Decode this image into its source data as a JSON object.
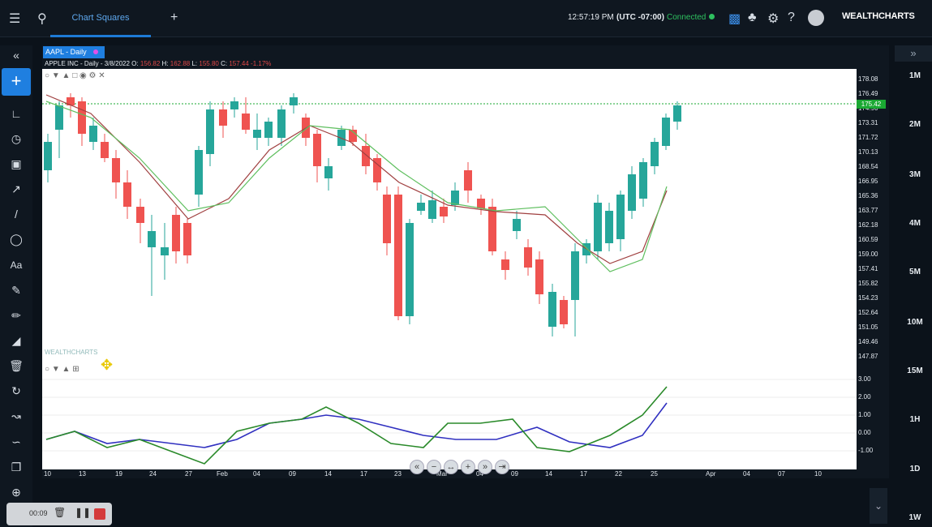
{
  "topbar": {
    "tab_label": "Chart Squares",
    "time": "12:57:19 PM",
    "timezone": "(UTC -07:00)",
    "connection": "Connected",
    "brand": "WEALTHCHARTS"
  },
  "left_toolbar": {
    "collapse": "«",
    "add": "+"
  },
  "right_panel": {
    "collapse": "»",
    "timeframes": [
      "1M",
      "2M",
      "3M",
      "4M",
      "5M",
      "10M",
      "15M",
      "1H",
      "1D",
      "1W"
    ]
  },
  "chart": {
    "label": "AAPL - Daily",
    "info_prefix": "APPLE INC - Daily - 3/8/2022 O:",
    "open": "156.82",
    "high_label": "H:",
    "high": "162.88",
    "low_label": "L:",
    "low": "155.80",
    "close_label": "C:",
    "close": "157.44",
    "change": "-1.17%",
    "last_price": "175.42",
    "price_ticks": [
      "178.08",
      "176.49",
      "174.90",
      "173.31",
      "171.72",
      "170.13",
      "168.54",
      "166.95",
      "165.36",
      "163.77",
      "162.18",
      "160.59",
      "159.00",
      "157.41",
      "155.82",
      "154.23",
      "152.64",
      "151.05",
      "149.46",
      "147.87"
    ],
    "osc_ticks": [
      "3.00",
      "2.00",
      "1.00",
      "0.00",
      "-1.00"
    ],
    "x_labels": [
      "10",
      "13",
      "19",
      "24",
      "27",
      "Feb",
      "04",
      "09",
      "14",
      "17",
      "23",
      "Mar",
      "04",
      "09",
      "14",
      "17",
      "22",
      "25",
      "Apr",
      "04",
      "07",
      "10"
    ],
    "watermark": "WEALTHCHARTS"
  },
  "recorder": {
    "elapsed": "00:09"
  },
  "colors": {
    "up": "#26a69a",
    "down": "#ef5350",
    "accent": "#1f7fe0",
    "connected": "#2ec05f"
  }
}
